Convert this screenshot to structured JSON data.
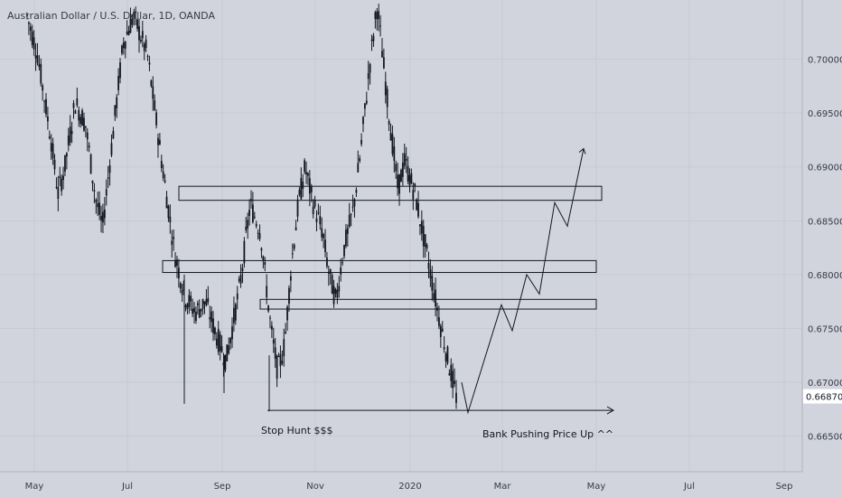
{
  "chart_data": {
    "type": "candlestick",
    "title": "Australian Dollar / U.S. Dollar, 1D, OANDA",
    "y_axis": {
      "ticks": [
        "0.70000",
        "0.69500",
        "0.69000",
        "0.68500",
        "0.68000",
        "0.67500",
        "0.67000",
        "0.66500"
      ],
      "tick_values": [
        0.7,
        0.695,
        0.69,
        0.685,
        0.68,
        0.675,
        0.67,
        0.665
      ],
      "range": [
        0.6617,
        0.7055
      ],
      "last_price_label": "0.66870",
      "last_price": 0.6687
    },
    "x_axis": {
      "ticks": [
        "May",
        "Jul",
        "Sep",
        "Nov",
        "2020",
        "Mar",
        "May",
        "Jul",
        "Sep"
      ]
    },
    "price_path": [
      {
        "t": 0,
        "p": 0.704
      },
      {
        "t": 0.03,
        "p": 0.7005
      },
      {
        "t": 0.05,
        "p": 0.6965
      },
      {
        "t": 0.07,
        "p": 0.6925
      },
      {
        "t": 0.09,
        "p": 0.6875
      },
      {
        "t": 0.11,
        "p": 0.69
      },
      {
        "t": 0.14,
        "p": 0.696
      },
      {
        "t": 0.17,
        "p": 0.694
      },
      {
        "t": 0.2,
        "p": 0.687
      },
      {
        "t": 0.22,
        "p": 0.6845
      },
      {
        "t": 0.25,
        "p": 0.693
      },
      {
        "t": 0.28,
        "p": 0.7015
      },
      {
        "t": 0.31,
        "p": 0.704
      },
      {
        "t": 0.35,
        "p": 0.7005
      },
      {
        "t": 0.39,
        "p": 0.691
      },
      {
        "t": 0.43,
        "p": 0.682
      },
      {
        "t": 0.46,
        "p": 0.678
      },
      {
        "t": 0.49,
        "p": 0.6765
      },
      {
        "t": 0.52,
        "p": 0.6775
      },
      {
        "t": 0.55,
        "p": 0.6745
      },
      {
        "t": 0.58,
        "p": 0.672
      },
      {
        "t": 0.62,
        "p": 0.679
      },
      {
        "t": 0.65,
        "p": 0.6865
      },
      {
        "t": 0.68,
        "p": 0.684
      },
      {
        "t": 0.71,
        "p": 0.675
      },
      {
        "t": 0.73,
        "p": 0.671
      },
      {
        "t": 0.75,
        "p": 0.6735
      },
      {
        "t": 0.77,
        "p": 0.681
      },
      {
        "t": 0.79,
        "p": 0.6865
      },
      {
        "t": 0.81,
        "p": 0.69
      },
      {
        "t": 0.83,
        "p": 0.687
      },
      {
        "t": 0.86,
        "p": 0.684
      },
      {
        "t": 0.88,
        "p": 0.68
      },
      {
        "t": 0.9,
        "p": 0.6775
      },
      {
        "t": 0.92,
        "p": 0.682
      },
      {
        "t": 0.95,
        "p": 0.686
      },
      {
        "t": 0.97,
        "p": 0.691
      },
      {
        "t": 1.0,
        "p": 0.7
      },
      {
        "t": 1.02,
        "p": 0.705
      },
      {
        "t": 1.05,
        "p": 0.696
      },
      {
        "t": 1.08,
        "p": 0.688
      },
      {
        "t": 1.1,
        "p": 0.6905
      },
      {
        "t": 1.13,
        "p": 0.6875
      },
      {
        "t": 1.17,
        "p": 0.681
      },
      {
        "t": 1.2,
        "p": 0.676
      },
      {
        "t": 1.23,
        "p": 0.6715
      },
      {
        "t": 1.25,
        "p": 0.6687
      }
    ],
    "zones": [
      {
        "x0": 0.0,
        "x1": 1.0,
        "y_top": 0.6882,
        "y_bottom": 0.6869
      },
      {
        "x0": 0.0,
        "x1": 1.0,
        "y_top": 0.6813,
        "y_bottom": 0.6802
      },
      {
        "x0": 0.0,
        "x1": 1.0,
        "y_top": 0.6777,
        "y_bottom": 0.6768
      }
    ],
    "support_line": {
      "y": 0.6674
    },
    "projection_path": [
      {
        "p": 0.67
      },
      {
        "p": 0.6672
      },
      {
        "p": 0.6772
      },
      {
        "p": 0.6748
      },
      {
        "p": 0.68
      },
      {
        "p": 0.6782
      },
      {
        "p": 0.6867
      },
      {
        "p": 0.6845
      },
      {
        "p": 0.6917
      }
    ],
    "annotations": [
      {
        "text": "Stop Hunt $$$"
      },
      {
        "text": "Bank Pushing Price Up ^^"
      }
    ]
  }
}
